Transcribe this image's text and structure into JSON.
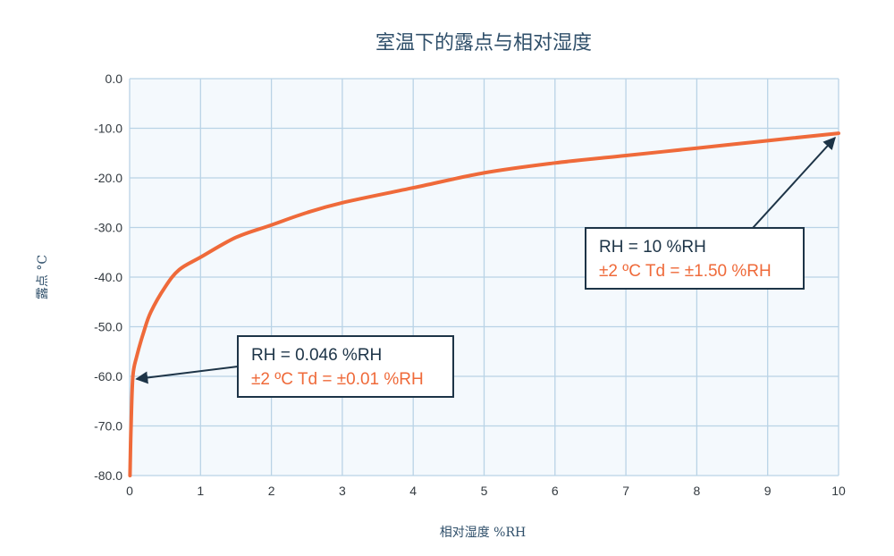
{
  "chart_data": {
    "type": "line",
    "title": "室温下的露点与相对湿度",
    "xlabel": "相对湿度 %RH",
    "ylabel": "露点 °C",
    "xlim": [
      0,
      10
    ],
    "ylim": [
      -80,
      0
    ],
    "x_ticks": [
      0,
      1,
      2,
      3,
      4,
      5,
      6,
      7,
      8,
      9,
      10
    ],
    "y_ticks": [
      0,
      -10,
      -20,
      -30,
      -40,
      -50,
      -60,
      -70,
      -80
    ],
    "x_tick_labels": [
      "0",
      "1",
      "2",
      "3",
      "4",
      "5",
      "6",
      "7",
      "8",
      "9",
      "10"
    ],
    "y_tick_labels": [
      "0.0",
      "-10.0",
      "-20.0",
      "-30.0",
      "-40.0",
      "-50.0",
      "-60.0",
      "-70.0",
      "-80.0"
    ],
    "grid": true,
    "line_color": "#ef6a3a",
    "grid_color": "#b9d3e6",
    "plot_bg": "#f4f9fd",
    "series": [
      {
        "x": [
          0.005,
          0.02,
          0.046,
          0.1,
          0.2,
          0.3,
          0.5,
          0.7,
          1.0,
          1.5,
          2.0,
          2.5,
          3.0,
          4.0,
          5.0,
          6.0,
          7.0,
          8.0,
          9.0,
          10.0
        ],
        "y": [
          -80.0,
          -70.0,
          -60.0,
          -56.0,
          -51.0,
          -47.0,
          -42.0,
          -38.5,
          -36.0,
          -32.0,
          -29.5,
          -27.0,
          -25.0,
          -22.0,
          -19.0,
          -17.0,
          -15.5,
          -14.0,
          -12.5,
          -11.0
        ]
      }
    ],
    "annotations": [
      {
        "line1": "RH = 0.046 %RH",
        "line2": "±2 ºC Td = ±0.01 %RH",
        "point_x": 0.046,
        "point_y": -60.0
      },
      {
        "line1": "RH = 10 %RH",
        "line2": "±2 ºC Td = ±1.50 %RH",
        "point_x": 10.0,
        "point_y": -11.0
      }
    ]
  }
}
